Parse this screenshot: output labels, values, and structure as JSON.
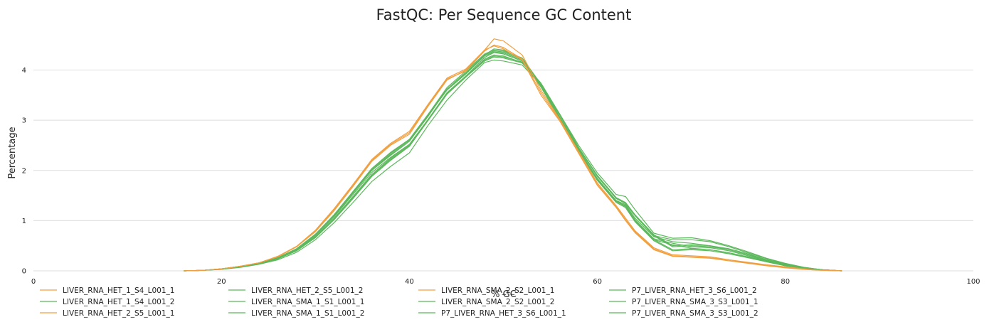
{
  "chart_data": {
    "type": "line",
    "title": "FastQC: Per Sequence GC Content",
    "xlabel": "% GC",
    "ylabel": "Percentage",
    "xlim": [
      0,
      100
    ],
    "ylim": [
      0,
      4.8
    ],
    "x_ticks": [
      0,
      20,
      40,
      60,
      80,
      100
    ],
    "y_ticks": [
      0,
      1,
      2,
      3,
      4
    ],
    "grid": "horizontal",
    "legend_position": "bottom",
    "colors": {
      "warn": "#f0a040",
      "pass": "#5cb85c"
    },
    "x": [
      16,
      18,
      20,
      22,
      24,
      26,
      28,
      30,
      32,
      34,
      36,
      38,
      40,
      42,
      44,
      46,
      48,
      49,
      50,
      52,
      54,
      56,
      58,
      60,
      62,
      63,
      64,
      66,
      68,
      70,
      72,
      74,
      76,
      78,
      80,
      82,
      84,
      86
    ],
    "series": [
      {
        "name": "LIVER_RNA_HET_1_S4_L001_1",
        "status": "warn",
        "values": [
          0,
          0.01,
          0.04,
          0.09,
          0.16,
          0.28,
          0.48,
          0.78,
          1.2,
          1.68,
          2.18,
          2.5,
          2.72,
          3.28,
          3.8,
          4.0,
          4.4,
          4.62,
          4.58,
          4.3,
          3.6,
          3.02,
          2.38,
          1.75,
          1.3,
          1.05,
          0.8,
          0.46,
          0.32,
          0.3,
          0.28,
          0.22,
          0.17,
          0.12,
          0.08,
          0.04,
          0.01,
          0
        ]
      },
      {
        "name": "LIVER_RNA_HET_1_S4_L001_2",
        "status": "pass",
        "values": [
          0,
          0.01,
          0.04,
          0.09,
          0.15,
          0.26,
          0.44,
          0.72,
          1.1,
          1.55,
          2.0,
          2.3,
          2.58,
          3.08,
          3.62,
          3.95,
          4.3,
          4.42,
          4.4,
          4.22,
          3.7,
          3.05,
          2.4,
          1.82,
          1.38,
          1.3,
          1.02,
          0.64,
          0.55,
          0.48,
          0.46,
          0.4,
          0.3,
          0.2,
          0.12,
          0.06,
          0.02,
          0
        ]
      },
      {
        "name": "LIVER_RNA_HET_2_S5_L001_1",
        "status": "warn",
        "values": [
          0,
          0.01,
          0.04,
          0.09,
          0.16,
          0.28,
          0.48,
          0.8,
          1.22,
          1.7,
          2.2,
          2.52,
          2.75,
          3.3,
          3.82,
          3.98,
          4.38,
          4.5,
          4.45,
          4.22,
          3.55,
          3.0,
          2.35,
          1.72,
          1.28,
          1.02,
          0.78,
          0.44,
          0.3,
          0.28,
          0.26,
          0.22,
          0.16,
          0.11,
          0.07,
          0.03,
          0.01,
          0
        ]
      },
      {
        "name": "LIVER_RNA_HET_2_S5_L001_2",
        "status": "pass",
        "values": [
          0,
          0.01,
          0.04,
          0.09,
          0.15,
          0.25,
          0.42,
          0.7,
          1.08,
          1.52,
          1.96,
          2.26,
          2.52,
          3.02,
          3.55,
          3.88,
          4.25,
          4.35,
          4.32,
          4.18,
          3.68,
          3.04,
          2.4,
          1.84,
          1.4,
          1.32,
          1.05,
          0.68,
          0.58,
          0.55,
          0.5,
          0.42,
          0.32,
          0.22,
          0.13,
          0.06,
          0.02,
          0
        ]
      },
      {
        "name": "LIVER_RNA_SMA_1_S1_L001_1",
        "status": "pass",
        "values": [
          0,
          0.01,
          0.03,
          0.08,
          0.14,
          0.24,
          0.4,
          0.66,
          1.02,
          1.44,
          1.88,
          2.2,
          2.48,
          3.0,
          3.52,
          3.86,
          4.22,
          4.3,
          4.28,
          4.15,
          3.72,
          3.1,
          2.45,
          1.88,
          1.45,
          1.35,
          1.1,
          0.7,
          0.62,
          0.62,
          0.58,
          0.48,
          0.36,
          0.24,
          0.14,
          0.07,
          0.02,
          0
        ]
      },
      {
        "name": "LIVER_RNA_SMA_1_S1_L001_2",
        "status": "pass",
        "values": [
          0,
          0.01,
          0.03,
          0.07,
          0.13,
          0.22,
          0.37,
          0.62,
          0.96,
          1.36,
          1.78,
          2.08,
          2.35,
          2.9,
          3.4,
          3.8,
          4.15,
          4.2,
          4.18,
          4.1,
          3.7,
          3.12,
          2.5,
          1.95,
          1.52,
          1.48,
          1.22,
          0.75,
          0.65,
          0.66,
          0.6,
          0.5,
          0.38,
          0.25,
          0.15,
          0.07,
          0.02,
          0
        ]
      },
      {
        "name": "LIVER_RNA_SMA_2_S2_L001_1",
        "status": "warn",
        "values": [
          0,
          0.01,
          0.04,
          0.09,
          0.16,
          0.29,
          0.49,
          0.81,
          1.24,
          1.72,
          2.22,
          2.54,
          2.78,
          3.32,
          3.84,
          4.02,
          4.4,
          4.48,
          4.42,
          4.2,
          3.5,
          2.98,
          2.34,
          1.7,
          1.26,
          1.0,
          0.76,
          0.42,
          0.29,
          0.27,
          0.25,
          0.2,
          0.15,
          0.1,
          0.06,
          0.03,
          0.01,
          0
        ]
      },
      {
        "name": "LIVER_RNA_SMA_2_S2_L001_2",
        "status": "pass",
        "values": [
          0,
          0.01,
          0.04,
          0.09,
          0.15,
          0.26,
          0.44,
          0.73,
          1.12,
          1.58,
          2.04,
          2.36,
          2.62,
          3.12,
          3.65,
          3.98,
          4.32,
          4.4,
          4.38,
          4.24,
          3.72,
          3.06,
          2.42,
          1.83,
          1.4,
          1.28,
          1.0,
          0.62,
          0.52,
          0.45,
          0.42,
          0.36,
          0.28,
          0.19,
          0.11,
          0.05,
          0.02,
          0
        ]
      },
      {
        "name": "P7_LIVER_RNA_HET_3_S6_L001_1",
        "status": "pass",
        "values": [
          0,
          0.01,
          0.04,
          0.09,
          0.15,
          0.25,
          0.43,
          0.71,
          1.1,
          1.55,
          2.0,
          2.32,
          2.6,
          3.1,
          3.6,
          3.92,
          4.28,
          4.36,
          4.34,
          4.2,
          3.66,
          3.02,
          2.38,
          1.8,
          1.36,
          1.26,
          0.98,
          0.6,
          0.4,
          0.42,
          0.4,
          0.34,
          0.26,
          0.18,
          0.1,
          0.05,
          0.02,
          0
        ]
      },
      {
        "name": "P7_LIVER_RNA_HET_3_S6_L001_2",
        "status": "pass",
        "values": [
          0,
          0.01,
          0.04,
          0.09,
          0.15,
          0.26,
          0.44,
          0.72,
          1.12,
          1.57,
          2.02,
          2.34,
          2.62,
          3.12,
          3.62,
          3.94,
          4.3,
          4.38,
          4.36,
          4.22,
          3.68,
          3.04,
          2.4,
          1.82,
          1.38,
          1.28,
          1.0,
          0.62,
          0.42,
          0.44,
          0.42,
          0.36,
          0.27,
          0.18,
          0.1,
          0.05,
          0.02,
          0
        ]
      },
      {
        "name": "P7_LIVER_RNA_SMA_3_S3_L001_1",
        "status": "pass",
        "values": [
          0,
          0.01,
          0.04,
          0.08,
          0.14,
          0.24,
          0.41,
          0.68,
          1.05,
          1.48,
          1.92,
          2.24,
          2.5,
          3.02,
          3.54,
          3.88,
          4.2,
          4.28,
          4.26,
          4.16,
          3.74,
          3.12,
          2.46,
          1.9,
          1.46,
          1.36,
          1.12,
          0.72,
          0.5,
          0.52,
          0.5,
          0.44,
          0.34,
          0.22,
          0.13,
          0.06,
          0.02,
          0
        ]
      },
      {
        "name": "P7_LIVER_RNA_SMA_3_S3_L001_2",
        "status": "pass",
        "values": [
          0,
          0.01,
          0.04,
          0.08,
          0.14,
          0.24,
          0.4,
          0.67,
          1.04,
          1.46,
          1.9,
          2.22,
          2.48,
          3.0,
          3.52,
          3.86,
          4.18,
          4.26,
          4.24,
          4.14,
          3.72,
          3.1,
          2.44,
          1.88,
          1.44,
          1.34,
          1.1,
          0.7,
          0.48,
          0.5,
          0.48,
          0.42,
          0.32,
          0.21,
          0.12,
          0.06,
          0.02,
          0
        ]
      }
    ],
    "legend_order": [
      "LIVER_RNA_HET_1_S4_L001_1",
      "LIVER_RNA_HET_1_S4_L001_2",
      "LIVER_RNA_HET_2_S5_L001_1",
      "LIVER_RNA_HET_2_S5_L001_2",
      "LIVER_RNA_SMA_1_S1_L001_1",
      "LIVER_RNA_SMA_1_S1_L001_2",
      "LIVER_RNA_SMA_2_S2_L001_1",
      "LIVER_RNA_SMA_2_S2_L001_2",
      "P7_LIVER_RNA_HET_3_S6_L001_1",
      "P7_LIVER_RNA_HET_3_S6_L001_2",
      "P7_LIVER_RNA_SMA_3_S3_L001_1",
      "P7_LIVER_RNA_SMA_3_S3_L001_2"
    ]
  }
}
